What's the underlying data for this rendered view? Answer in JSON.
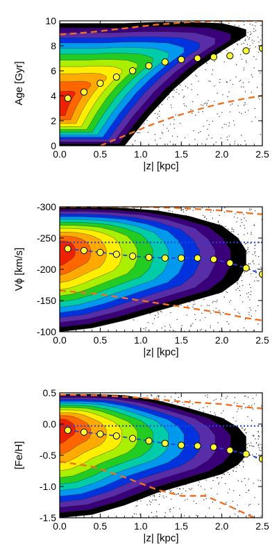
{
  "figure": {
    "background": "#ffffff",
    "contour_colors": [
      "#000000",
      "#3a007a",
      "#5a2da8",
      "#0033dd",
      "#0099ee",
      "#00ccaa",
      "#22cc22",
      "#aaee00",
      "#ffee00",
      "#ffaa00",
      "#ff6600",
      "#ee2200"
    ]
  },
  "chart_data": [
    {
      "type": "contour",
      "name": "age-vs-z",
      "xlabel": "|z|  [kpc]",
      "ylabel": "Age  [Gyr]",
      "xlim": [
        0.0,
        2.5
      ],
      "ylim": [
        0,
        10
      ],
      "inverted_y": false,
      "xticks": [
        0.0,
        0.5,
        1.0,
        1.5,
        2.0,
        2.5
      ],
      "xtick_labels": [
        "0.0",
        "0.5",
        "1.0",
        "1.5",
        "2.0",
        "2.5"
      ],
      "yticks": [
        0,
        2,
        4,
        6,
        8,
        10
      ],
      "ytick_labels": [
        "0",
        "2",
        "4",
        "6",
        "8",
        "10"
      ],
      "median_points": {
        "x": [
          0.1,
          0.3,
          0.5,
          0.7,
          0.9,
          1.1,
          1.3,
          1.5,
          1.7,
          1.9,
          2.1,
          2.3,
          2.5
        ],
        "y": [
          3.8,
          4.3,
          5.0,
          5.5,
          6.0,
          6.4,
          6.7,
          6.9,
          7.0,
          7.1,
          7.2,
          7.6,
          7.8
        ]
      },
      "dashed_upper": {
        "x": [
          0.0,
          0.4,
          0.8,
          1.2,
          1.6,
          2.0,
          2.4,
          2.5
        ],
        "y": [
          8.9,
          9.1,
          9.4,
          9.7,
          9.9,
          10.0,
          10.0,
          10.0
        ]
      },
      "dashed_lower": {
        "x": [
          0.5,
          0.8,
          1.1,
          1.4,
          1.7,
          2.0,
          2.3,
          2.5
        ],
        "y": [
          0.0,
          0.8,
          1.6,
          2.3,
          2.9,
          3.4,
          3.8,
          4.0
        ]
      },
      "core": {
        "x": 0.1,
        "y": 3.0
      },
      "envelope_top": {
        "x": [
          0.0,
          0.4,
          0.8,
          1.2,
          1.6,
          2.0,
          2.2,
          2.3
        ],
        "y": [
          9.8,
          9.8,
          9.8,
          9.9,
          9.9,
          9.8,
          9.5,
          9.3
        ]
      },
      "envelope_bottom": {
        "x": [
          0.0,
          0.4,
          0.8,
          1.1,
          1.4,
          1.7,
          2.0,
          2.3
        ],
        "y": [
          0.0,
          0.0,
          0.0,
          2.4,
          4.5,
          6.2,
          7.6,
          8.8
        ]
      }
    },
    {
      "type": "contour",
      "name": "vphi-vs-z",
      "xlabel": "|z|  [kpc]",
      "ylabel": "Vϕ  [km/s]",
      "xlim": [
        0.0,
        2.5
      ],
      "ylim": [
        -300,
        -100
      ],
      "inverted_y": true,
      "xticks": [
        0.0,
        0.5,
        1.0,
        1.5,
        2.0,
        2.5
      ],
      "xtick_labels": [
        "0.0",
        "0.5",
        "1.0",
        "1.5",
        "2.0",
        "2.5"
      ],
      "yticks": [
        -300,
        -250,
        -200,
        -150,
        -100
      ],
      "ytick_labels": [
        "-300",
        "-250",
        "-200",
        "-150",
        "-100"
      ],
      "reference_line": -243,
      "median_points": {
        "x": [
          0.1,
          0.3,
          0.5,
          0.7,
          0.9,
          1.1,
          1.3,
          1.5,
          1.7,
          1.9,
          2.1,
          2.3,
          2.5
        ],
        "y": [
          -233,
          -230,
          -227,
          -224,
          -221,
          -219,
          -218,
          -218,
          -218,
          -216,
          -210,
          -202,
          -192
        ]
      },
      "dashed_upper": {
        "x": [
          0.0,
          0.5,
          1.0,
          1.5,
          2.0,
          2.3,
          2.5
        ],
        "y": [
          -300,
          -300,
          -300,
          -298,
          -294,
          -290,
          -288
        ]
      },
      "dashed_lower": {
        "x": [
          0.0,
          0.5,
          1.0,
          1.5,
          2.0,
          2.3,
          2.5
        ],
        "y": [
          -166,
          -160,
          -150,
          -140,
          -130,
          -122,
          -118
        ]
      },
      "core": {
        "x": 0.1,
        "y": -232
      },
      "envelope_top": {
        "x": [
          0.0,
          0.4,
          0.8,
          1.2,
          1.6,
          2.0,
          2.2,
          2.3
        ],
        "y": [
          -300,
          -300,
          -298,
          -294,
          -285,
          -270,
          -250,
          -230
        ]
      },
      "envelope_bottom": {
        "x": [
          0.0,
          0.4,
          0.8,
          1.2,
          1.6,
          2.0,
          2.2,
          2.3
        ],
        "y": [
          -100,
          -106,
          -118,
          -133,
          -148,
          -163,
          -182,
          -205
        ]
      }
    },
    {
      "type": "contour",
      "name": "feh-vs-z",
      "xlabel": "|z|  [kpc]",
      "ylabel": "[Fe/H]",
      "xlim": [
        0.0,
        2.5
      ],
      "ylim": [
        -1.5,
        0.5
      ],
      "inverted_y": false,
      "xticks": [
        0.0,
        0.5,
        1.0,
        1.5,
        2.0,
        2.5
      ],
      "xtick_labels": [
        "0.0",
        "0.5",
        "1.0",
        "1.5",
        "2.0",
        "2.5"
      ],
      "yticks": [
        -1.5,
        -1.0,
        -0.5,
        0.0,
        0.5
      ],
      "ytick_labels": [
        "-1.5",
        "-1.0",
        "-0.5",
        "0.0",
        "0.5"
      ],
      "reference_line": -0.03,
      "median_points": {
        "x": [
          0.1,
          0.3,
          0.5,
          0.7,
          0.9,
          1.1,
          1.3,
          1.5,
          1.7,
          1.9,
          2.1,
          2.3,
          2.5
        ],
        "y": [
          -0.1,
          -0.13,
          -0.16,
          -0.19,
          -0.23,
          -0.27,
          -0.31,
          -0.34,
          -0.35,
          -0.37,
          -0.42,
          -0.48,
          -0.56
        ]
      },
      "dashed_upper": {
        "x": [
          0.0,
          0.5,
          1.0,
          1.5,
          2.0,
          2.3,
          2.5
        ],
        "y": [
          0.47,
          0.46,
          0.42,
          0.36,
          0.32,
          0.27,
          0.25
        ]
      },
      "dashed_lower": {
        "x": [
          0.0,
          0.4,
          0.8,
          1.2,
          1.5,
          1.8,
          2.1,
          2.4
        ],
        "y": [
          -0.6,
          -0.68,
          -0.85,
          -1.05,
          -1.15,
          -1.15,
          -1.32,
          -1.5
        ]
      },
      "core": {
        "x": 0.1,
        "y": -0.02
      },
      "envelope_top": {
        "x": [
          0.0,
          0.4,
          0.8,
          1.2,
          1.6,
          2.0,
          2.2,
          2.3
        ],
        "y": [
          0.48,
          0.48,
          0.46,
          0.38,
          0.25,
          0.1,
          -0.05,
          -0.2
        ]
      },
      "envelope_bottom": {
        "x": [
          0.0,
          0.4,
          0.8,
          1.2,
          1.6,
          2.0,
          2.2,
          2.3
        ],
        "y": [
          -1.5,
          -1.45,
          -1.3,
          -1.1,
          -0.95,
          -0.8,
          -0.65,
          -0.5
        ]
      }
    }
  ]
}
